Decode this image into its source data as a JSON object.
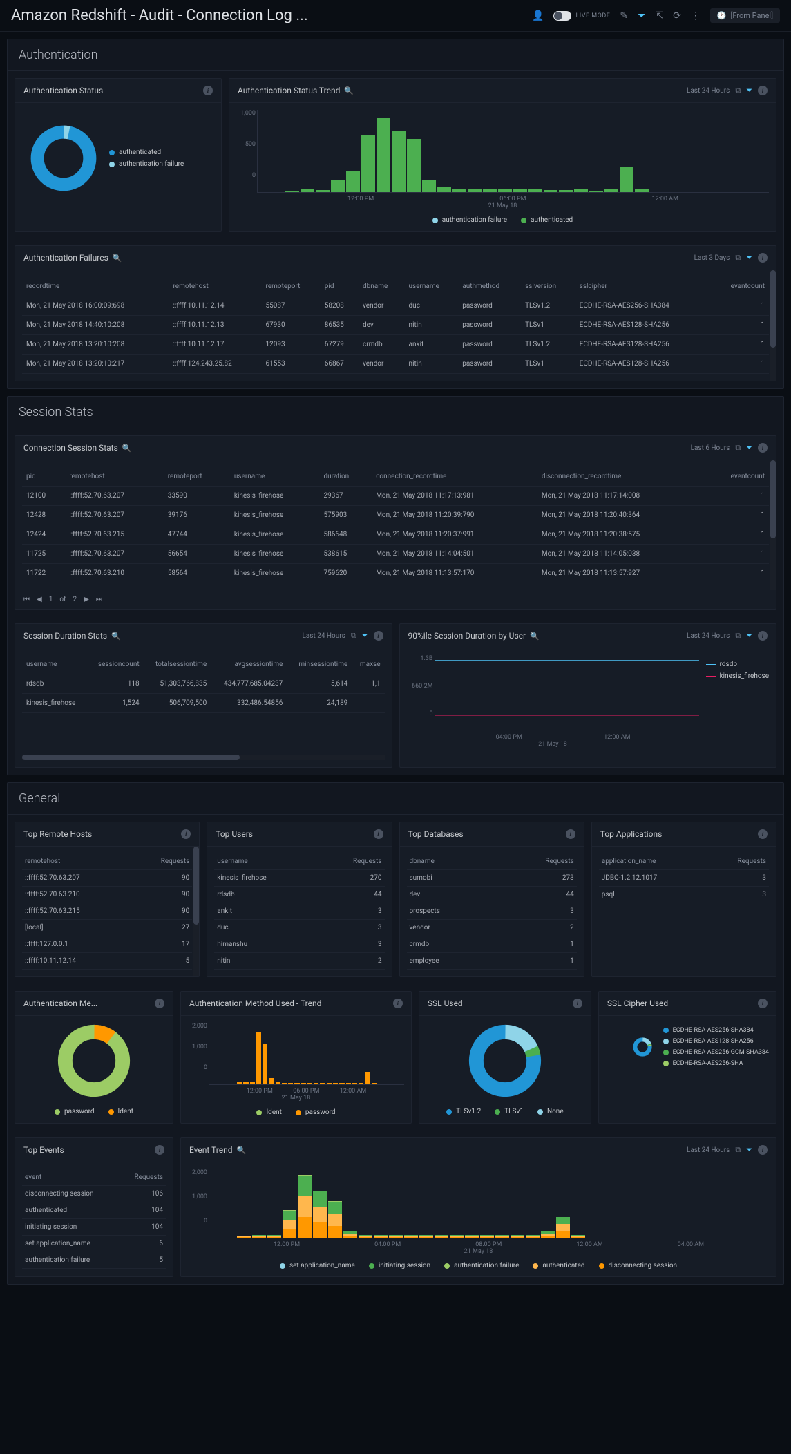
{
  "topbar": {
    "title": "Amazon Redshift - Audit - Connection Log ...",
    "live_label": "LIVE MODE",
    "time_pill": "[From Panel]"
  },
  "colors": {
    "bg": "#0a0e14",
    "panel": "#161c26",
    "blue": "#2196d6",
    "lightblue": "#8fd4e8",
    "green": "#4caf50",
    "lightgreen": "#9ccc65",
    "orange": "#ff9800",
    "grey": "#6a7280"
  },
  "sections": {
    "auth": {
      "title": "Authentication",
      "status_panel": {
        "title": "Authentication Status",
        "donut": {
          "slices": [
            {
              "label": "authenticated",
              "color": "#2196d6",
              "pct": 97
            },
            {
              "label": "authentication failure",
              "color": "#8fd4e8",
              "pct": 3
            }
          ]
        }
      },
      "trend_panel": {
        "title": "Authentication Status Trend",
        "time": "Last 24 Hours",
        "ylabels": [
          "1,000",
          "500",
          "0"
        ],
        "xlabels": [
          "12:00 PM",
          "06:00 PM",
          "12:00 AM"
        ],
        "xsub": "21 May 18",
        "bars": [
          20,
          30,
          25,
          150,
          250,
          700,
          900,
          750,
          650,
          150,
          60,
          30,
          30,
          30,
          30,
          30,
          30,
          25,
          25,
          30,
          20,
          30,
          300,
          35
        ],
        "bar_color": "#4caf50",
        "legend": [
          {
            "label": "authentication failure",
            "color": "#8fd4e8"
          },
          {
            "label": "authenticated",
            "color": "#4caf50"
          }
        ]
      },
      "failures_panel": {
        "title": "Authentication Failures",
        "time": "Last 3 Days",
        "columns": [
          "recordtime",
          "remotehost",
          "remoteport",
          "pid",
          "dbname",
          "username",
          "authmethod",
          "sslversion",
          "sslcipher",
          "eventcount"
        ],
        "rows": [
          [
            "Mon, 21 May 2018 16:00:09:698",
            "::ffff:10.11.12.14",
            "55087",
            "58208",
            "vendor",
            "duc",
            "password",
            "TLSv1.2",
            "ECDHE-RSA-AES256-SHA384",
            "1"
          ],
          [
            "Mon, 21 May 2018 14:40:10:208",
            "::ffff:10.11.12.13",
            "67930",
            "86535",
            "dev",
            "nitin",
            "password",
            "TLSv1",
            "ECDHE-RSA-AES128-SHA256",
            "1"
          ],
          [
            "Mon, 21 May 2018 13:20:10:208",
            "::ffff:10.11.12.17",
            "12093",
            "67279",
            "crmdb",
            "ankit",
            "password",
            "TLSv1.2",
            "ECDHE-RSA-AES128-SHA256",
            "1"
          ],
          [
            "Mon, 21 May 2018 13:20:10:217",
            "::ffff:124.243.25.82",
            "61553",
            "66867",
            "vendor",
            "nitin",
            "password",
            "TLSv1",
            "ECDHE-RSA-AES128-SHA256",
            "1"
          ]
        ]
      }
    },
    "session": {
      "title": "Session Stats",
      "conn_panel": {
        "title": "Connection Session Stats",
        "time": "Last 6 Hours",
        "columns": [
          "pid",
          "remotehost",
          "remoteport",
          "username",
          "duration",
          "connection_recordtime",
          "disconnection_recordtime",
          "eventcount"
        ],
        "rows": [
          [
            "12100",
            "::ffff:52.70.63.207",
            "33590",
            "kinesis_firehose",
            "29367",
            "Mon, 21 May 2018 11:17:13:981",
            "Mon, 21 May 2018 11:17:14:008",
            "1"
          ],
          [
            "12428",
            "::ffff:52.70.63.207",
            "39176",
            "kinesis_firehose",
            "575903",
            "Mon, 21 May 2018 11:20:39:790",
            "Mon, 21 May 2018 11:20:40:364",
            "1"
          ],
          [
            "12424",
            "::ffff:52.70.63.215",
            "47744",
            "kinesis_firehose",
            "586648",
            "Mon, 21 May 2018 11:20:37:991",
            "Mon, 21 May 2018 11:20:38:575",
            "1"
          ],
          [
            "11725",
            "::ffff:52.70.63.207",
            "56654",
            "kinesis_firehose",
            "538615",
            "Mon, 21 May 2018 11:14:04:501",
            "Mon, 21 May 2018 11:14:05:038",
            "1"
          ],
          [
            "11722",
            "::ffff:52.70.63.210",
            "58564",
            "kinesis_firehose",
            "759620",
            "Mon, 21 May 2018 11:13:57:170",
            "Mon, 21 May 2018 11:13:57:927",
            "1"
          ]
        ],
        "pager": {
          "page": "1",
          "of": "of",
          "total": "2"
        }
      },
      "duration_panel": {
        "title": "Session Duration Stats",
        "time": "Last 24 Hours",
        "columns": [
          "username",
          "sessioncount",
          "totalsessiontime",
          "avgsessiontime",
          "minsessiontime",
          "maxse"
        ],
        "rows": [
          [
            "rdsdb",
            "118",
            "51,303,766,835",
            "434,777,685.04237",
            "5,614",
            "1,1"
          ],
          [
            "kinesis_firehose",
            "1,524",
            "506,709,500",
            "332,486.54856",
            "24,189",
            ""
          ]
        ]
      },
      "p90_panel": {
        "title": "90%ile Session Duration by User",
        "time": "Last 24 Hours",
        "ylabels": [
          "1.3B",
          "660.2M",
          "0"
        ],
        "xlabels": [
          "04:00 PM",
          "12:00 AM"
        ],
        "xsub": "21 May 18",
        "legend": [
          {
            "label": "rdsdb",
            "color": "#4fc3f7"
          },
          {
            "label": "kinesis_firehose",
            "color": "#e91e63"
          }
        ]
      }
    },
    "general": {
      "title": "General",
      "top_hosts": {
        "title": "Top Remote Hosts",
        "col1": "remotehost",
        "col2": "Requests",
        "rows": [
          [
            "::ffff:52.70.63.207",
            "90"
          ],
          [
            "::ffff:52.70.63.210",
            "90"
          ],
          [
            "::ffff:52.70.63.215",
            "90"
          ],
          [
            "[local]",
            "27"
          ],
          [
            "::ffff:127.0.0.1",
            "17"
          ],
          [
            "::ffff:10.11.12.14",
            "5"
          ]
        ]
      },
      "top_users": {
        "title": "Top Users",
        "col1": "username",
        "col2": "Requests",
        "rows": [
          [
            "kinesis_firehose",
            "270"
          ],
          [
            "rdsdb",
            "44"
          ],
          [
            "ankit",
            "3"
          ],
          [
            "duc",
            "3"
          ],
          [
            "himanshu",
            "3"
          ],
          [
            "nitin",
            "2"
          ]
        ]
      },
      "top_dbs": {
        "title": "Top Databases",
        "col1": "dbname",
        "col2": "Requests",
        "rows": [
          [
            "sumobi",
            "273"
          ],
          [
            "dev",
            "44"
          ],
          [
            "prospects",
            "3"
          ],
          [
            "vendor",
            "2"
          ],
          [
            "crmdb",
            "1"
          ],
          [
            "employee",
            "1"
          ]
        ]
      },
      "top_apps": {
        "title": "Top Applications",
        "col1": "application_name",
        "col2": "Requests",
        "rows": [
          [
            "JDBC-1.2.12.1017",
            "3"
          ],
          [
            "psql",
            "3"
          ]
        ]
      },
      "auth_method": {
        "title": "Authentication Me...",
        "donut": {
          "slices": [
            {
              "label": "password",
              "color": "#9ccc65",
              "pct": 90
            },
            {
              "label": "Ident",
              "color": "#ff9800",
              "pct": 10
            }
          ]
        }
      },
      "auth_method_trend": {
        "title": "Authentication Method Used - Trend",
        "ylabels": [
          "2,000",
          "1,000",
          "0"
        ],
        "xlabels": [
          "12:00 PM",
          "06:00 PM",
          "12:00 AM"
        ],
        "xsub": "21 May 18",
        "bars": [
          80,
          60,
          70,
          1700,
          1300,
          200,
          100,
          40,
          40,
          40,
          40,
          40,
          40,
          40,
          40,
          40,
          40,
          40,
          40,
          40,
          400,
          40
        ],
        "legend": [
          {
            "label": "Ident",
            "color": "#9ccc65"
          },
          {
            "label": "password",
            "color": "#ff9800"
          }
        ]
      },
      "ssl_used": {
        "title": "SSL Used",
        "donut": {
          "slices": [
            {
              "label": "TLSv1.2",
              "color": "#2196d6",
              "pct": 78
            },
            {
              "label": "TLSv1",
              "color": "#4caf50",
              "pct": 4
            },
            {
              "label": "None",
              "color": "#8fd4e8",
              "pct": 18
            }
          ]
        }
      },
      "ssl_cipher": {
        "title": "SSL Cipher Used",
        "donut": {
          "slices": [
            {
              "label": "ECDHE-RSA-AES256-SHA384",
              "color": "#2196d6",
              "pct": 78
            },
            {
              "label": "ECDHE-RSA-AES128-SHA256",
              "color": "#8fd4e8",
              "pct": 18
            },
            {
              "label": "ECDHE-RSA-AES256-GCM-SHA384",
              "color": "#4caf50",
              "pct": 2
            },
            {
              "label": "ECDHE-RSA-AES256-SHA",
              "color": "#9ccc65",
              "pct": 2
            }
          ]
        }
      },
      "top_events": {
        "title": "Top Events",
        "col1": "event",
        "col2": "Requests",
        "rows": [
          [
            "disconnecting session",
            "106"
          ],
          [
            "authenticated",
            "104"
          ],
          [
            "initiating session",
            "104"
          ],
          [
            "set application_name",
            "6"
          ],
          [
            "authentication failure",
            "5"
          ]
        ]
      },
      "event_trend": {
        "title": "Event Trend",
        "time": "Last 24 Hours",
        "ylabels": [
          "2,000",
          "1,000",
          "0"
        ],
        "xlabels": [
          "12:00 PM",
          "04:00 PM",
          "08:00 PM",
          "12:00 AM",
          "04:00 AM"
        ],
        "xsub": "21 May 18",
        "stacks": [
          [
            20,
            20,
            20,
            0,
            0
          ],
          [
            30,
            30,
            30,
            0,
            0
          ],
          [
            25,
            25,
            25,
            0,
            0
          ],
          [
            260,
            260,
            260,
            20,
            0
          ],
          [
            600,
            600,
            600,
            30,
            0
          ],
          [
            450,
            450,
            450,
            20,
            0
          ],
          [
            350,
            350,
            350,
            20,
            0
          ],
          [
            60,
            60,
            60,
            0,
            0
          ],
          [
            30,
            30,
            30,
            0,
            0
          ],
          [
            30,
            30,
            30,
            0,
            0
          ],
          [
            30,
            30,
            30,
            0,
            0
          ],
          [
            30,
            30,
            30,
            0,
            0
          ],
          [
            30,
            30,
            30,
            0,
            0
          ],
          [
            30,
            30,
            30,
            0,
            0
          ],
          [
            25,
            25,
            25,
            0,
            0
          ],
          [
            30,
            30,
            30,
            0,
            0
          ],
          [
            25,
            25,
            25,
            0,
            0
          ],
          [
            30,
            30,
            30,
            0,
            0
          ],
          [
            30,
            30,
            30,
            0,
            0
          ],
          [
            25,
            25,
            25,
            0,
            0
          ],
          [
            60,
            60,
            60,
            0,
            0
          ],
          [
            200,
            200,
            200,
            10,
            0
          ],
          [
            30,
            30,
            30,
            0,
            0
          ]
        ],
        "stack_colors": [
          "#ff9800",
          "#ffb74d",
          "#4caf50",
          "#9ccc65",
          "#8fd4e8"
        ],
        "legend": [
          {
            "label": "set application_name",
            "color": "#8fd4e8"
          },
          {
            "label": "initiating session",
            "color": "#4caf50"
          },
          {
            "label": "authentication failure",
            "color": "#9ccc65"
          },
          {
            "label": "authenticated",
            "color": "#ffb74d"
          },
          {
            "label": "disconnecting session",
            "color": "#ff9800"
          }
        ]
      }
    }
  }
}
